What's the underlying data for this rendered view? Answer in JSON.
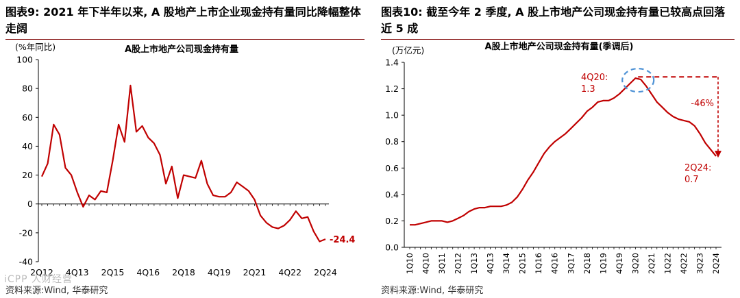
{
  "left": {
    "figure_title": "图表9:  2021 年下半年以来, A 股地产上市企业现金持有量同比降幅整体走阔",
    "source": "资料来源:Wind, 华泰研究",
    "watermark": "iCPP 人财经营",
    "colors": {
      "line": "#c00000",
      "axis": "#000000",
      "annotation": "#c00000"
    }
  },
  "right": {
    "figure_title": "图表10:  截至今年 2 季度, A 股上市地产公司现金持有量已较高点回落近 5 成",
    "source": "资料来源:Wind, 华泰研究",
    "colors": {
      "line": "#c00000",
      "axis": "#000000",
      "annotation": "#c00000",
      "circle": "#4f93d6"
    }
  },
  "chart_data": [
    {
      "type": "line",
      "title": "A股上市地产公司现金持有量",
      "ylabel": "(%年同比)",
      "xlabel": "",
      "ylim": [
        -40,
        100
      ],
      "yticks": [
        -40,
        -20,
        0,
        20,
        40,
        60,
        80,
        100
      ],
      "x_ticklabels": [
        "2Q12",
        "4Q13",
        "2Q15",
        "4Q16",
        "2Q18",
        "4Q19",
        "2Q21",
        "4Q22",
        "2Q24"
      ],
      "x": [
        "2Q12",
        "3Q12",
        "4Q12",
        "1Q13",
        "2Q13",
        "3Q13",
        "4Q13",
        "1Q14",
        "2Q14",
        "3Q14",
        "4Q14",
        "1Q15",
        "2Q15",
        "3Q15",
        "4Q15",
        "1Q16",
        "2Q16",
        "3Q16",
        "4Q16",
        "1Q17",
        "2Q17",
        "3Q17",
        "4Q17",
        "1Q18",
        "2Q18",
        "3Q18",
        "4Q18",
        "1Q19",
        "2Q19",
        "3Q19",
        "4Q19",
        "1Q20",
        "2Q20",
        "3Q20",
        "4Q20",
        "1Q21",
        "2Q21",
        "3Q21",
        "4Q21",
        "1Q22",
        "2Q22",
        "3Q22",
        "4Q22",
        "1Q23",
        "2Q23",
        "3Q23",
        "4Q23",
        "1Q24",
        "2Q24"
      ],
      "series": [
        {
          "name": "A股上市地产公司现金持有量同比",
          "values": [
            19,
            28,
            55,
            48,
            25,
            20,
            8,
            -2,
            6,
            3,
            9,
            8,
            30,
            55,
            43,
            82,
            50,
            54,
            46,
            42,
            34,
            14,
            26,
            4,
            20,
            19,
            18,
            30,
            14,
            6,
            5,
            5,
            8,
            15,
            12,
            9,
            3,
            -8,
            -13,
            -16,
            -17,
            -15,
            -11,
            -5,
            -10,
            -9,
            -19,
            -26,
            -24.4
          ]
        }
      ],
      "annotations": [
        {
          "text": "-24.4",
          "at": "2Q24",
          "value": -24.4
        }
      ]
    },
    {
      "type": "line",
      "title": "A股上市地产公司现金持有量(季调后)",
      "ylabel": "(万亿元)",
      "xlabel": "",
      "ylim": [
        0,
        1.4
      ],
      "yticks": [
        0.0,
        0.2,
        0.4,
        0.6,
        0.8,
        1.0,
        1.2,
        1.4
      ],
      "y_tick_labels": [
        "0.0",
        "0.2",
        "0.4",
        "0.6",
        "0.8",
        "1.0",
        "1.2",
        "1.4"
      ],
      "x_ticklabels": [
        "1Q10",
        "4Q10",
        "3Q11",
        "2Q12",
        "1Q13",
        "4Q13",
        "3Q14",
        "2Q15",
        "1Q16",
        "4Q16",
        "3Q17",
        "2Q18",
        "1Q19",
        "4Q19",
        "3Q20",
        "2Q21",
        "1Q22",
        "4Q22",
        "3Q23",
        "2Q24"
      ],
      "x": [
        "1Q10",
        "2Q10",
        "3Q10",
        "4Q10",
        "1Q11",
        "2Q11",
        "3Q11",
        "4Q11",
        "1Q12",
        "2Q12",
        "3Q12",
        "4Q12",
        "1Q13",
        "2Q13",
        "3Q13",
        "4Q13",
        "1Q14",
        "2Q14",
        "3Q14",
        "4Q14",
        "1Q15",
        "2Q15",
        "3Q15",
        "4Q15",
        "1Q16",
        "2Q16",
        "3Q16",
        "4Q16",
        "1Q17",
        "2Q17",
        "3Q17",
        "4Q17",
        "1Q18",
        "2Q18",
        "3Q18",
        "4Q18",
        "1Q19",
        "2Q19",
        "3Q19",
        "4Q19",
        "1Q20",
        "2Q20",
        "3Q20",
        "4Q20",
        "1Q21",
        "2Q21",
        "3Q21",
        "4Q21",
        "1Q22",
        "2Q22",
        "3Q22",
        "4Q22",
        "1Q23",
        "2Q23",
        "3Q23",
        "4Q23",
        "1Q24",
        "2Q24"
      ],
      "series": [
        {
          "name": "A股上市地产公司现金持有量(季调后)",
          "values": [
            0.17,
            0.17,
            0.18,
            0.19,
            0.2,
            0.2,
            0.2,
            0.19,
            0.2,
            0.22,
            0.24,
            0.27,
            0.29,
            0.3,
            0.3,
            0.31,
            0.31,
            0.31,
            0.32,
            0.34,
            0.38,
            0.44,
            0.51,
            0.57,
            0.64,
            0.71,
            0.76,
            0.8,
            0.83,
            0.86,
            0.9,
            0.94,
            0.98,
            1.03,
            1.06,
            1.1,
            1.11,
            1.11,
            1.13,
            1.16,
            1.2,
            1.24,
            1.28,
            1.27,
            1.22,
            1.16,
            1.1,
            1.06,
            1.02,
            0.99,
            0.97,
            0.96,
            0.95,
            0.92,
            0.86,
            0.79,
            0.74,
            0.69
          ]
        }
      ],
      "annotations": [
        {
          "text_line1": "4Q20:",
          "text_line2": "1.3",
          "at": "4Q20",
          "value": 1.3
        },
        {
          "text_line1": "2Q24:",
          "text_line2": "0.7",
          "at": "2Q24",
          "value": 0.7
        },
        {
          "text": "-46%",
          "note": "drop from peak"
        }
      ]
    }
  ]
}
